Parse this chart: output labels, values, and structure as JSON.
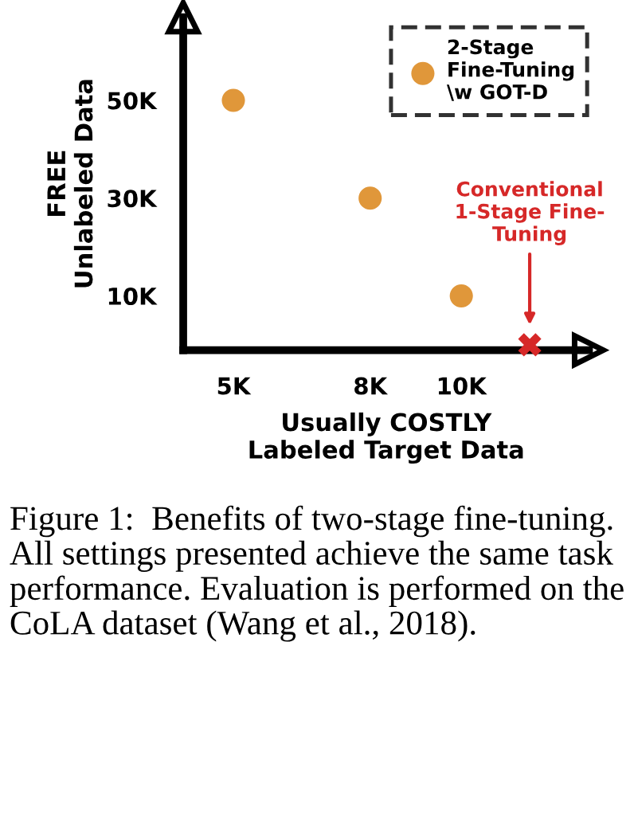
{
  "chart_data": {
    "type": "scatter",
    "xlabel": "Usually COSTLY\nLabeled Target Data",
    "ylabel": "FREE\nUnlabeled Data",
    "xlim": [
      3900,
      12800
    ],
    "ylim": [
      -1100,
      67000
    ],
    "xticks": [
      {
        "value": 5000,
        "label": "5K"
      },
      {
        "value": 8000,
        "label": "8K"
      },
      {
        "value": 10000,
        "label": "10K"
      }
    ],
    "yticks": [
      {
        "value": 10000,
        "label": "10K"
      },
      {
        "value": 30000,
        "label": "30K"
      },
      {
        "value": 50000,
        "label": "50K"
      }
    ],
    "series": [
      {
        "name": "2-Stage\nFine-Tuning\n\\w GOT-D",
        "color": "#e0973a",
        "x": [
          5000,
          8000,
          10000
        ],
        "values": [
          50000,
          30000,
          10000
        ]
      },
      {
        "color": "#d62828",
        "marker": "cross",
        "x": [
          11500
        ],
        "values": [
          0
        ]
      }
    ],
    "annotations": [
      "Conventional\n1-Stage Fine-\nTuning",
      "Figure 1:  Benefits of two-stage fine-tuning. All settings presented achieve the same task performance. Evaluation is performed on the CoLA dataset (Wang et al., 2018)."
    ],
    "legend": "top right",
    "grid": false,
    "marker": "circle"
  }
}
